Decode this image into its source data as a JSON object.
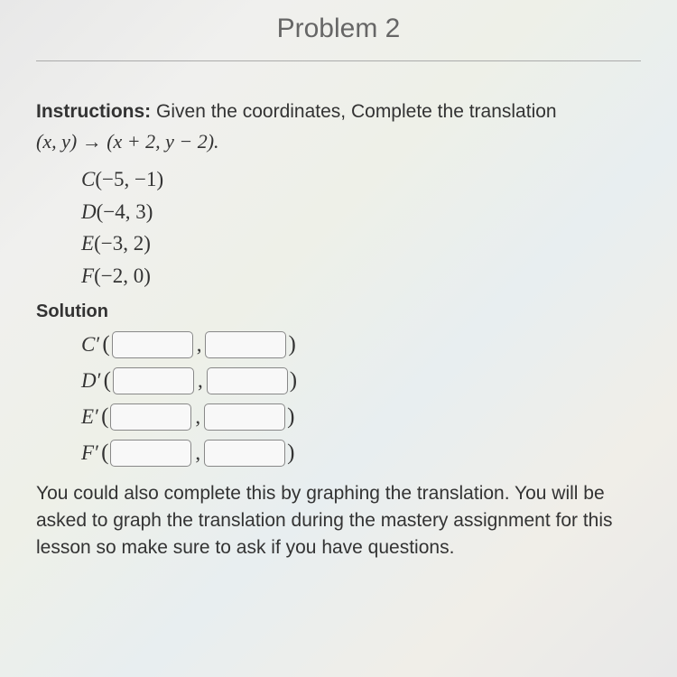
{
  "title": "Problem 2",
  "instructions": {
    "label": "Instructions:",
    "text": "Given the coordinates, Complete the translation",
    "rule_left": "(x, y)",
    "rule_arrow": "→",
    "rule_right": "(x + 2, y − 2).",
    "rule_end": ""
  },
  "points": {
    "C": {
      "label": "C",
      "value": "(−5, −1)"
    },
    "D": {
      "label": "D",
      "value": "(−4, 3)"
    },
    "E": {
      "label": "E",
      "value": "(−3, 2)"
    },
    "F": {
      "label": "F",
      "value": "(−2, 0)"
    }
  },
  "solution": {
    "heading": "Solution",
    "rows": {
      "C": {
        "label": "C",
        "x": "",
        "y": ""
      },
      "D": {
        "label": "D",
        "x": "",
        "y": ""
      },
      "E": {
        "label": "E",
        "x": "",
        "y": ""
      },
      "F": {
        "label": "F",
        "x": "",
        "y": ""
      }
    }
  },
  "footer": "You could also complete this by graphing the translation. You will be asked to graph the translation during the mastery assignment for this lesson so make sure to ask if you have questions.",
  "colors": {
    "text": "#333333",
    "title": "#666666",
    "divider": "#aaaaaa",
    "input_border": "#888888",
    "input_bg": "#f8f8f8"
  },
  "fonts": {
    "title_family": "Arial",
    "body_family": "Arial",
    "math_family": "Georgia",
    "title_size": 30,
    "body_size": 21,
    "math_size": 23
  }
}
